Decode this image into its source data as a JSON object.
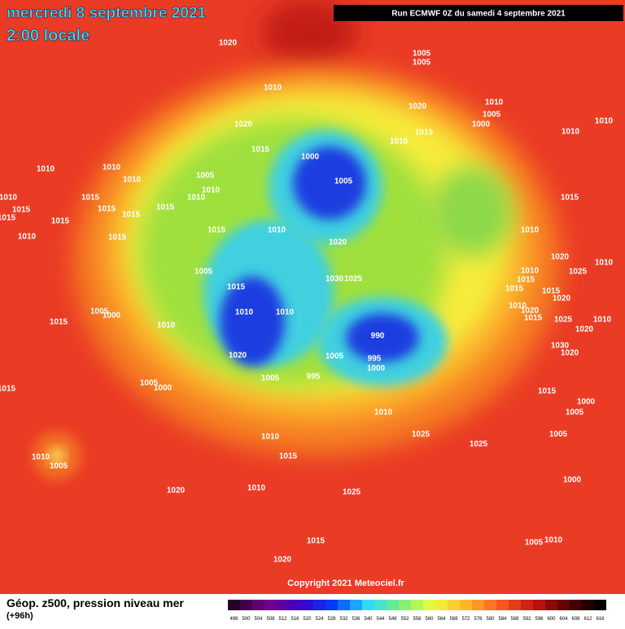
{
  "header": {
    "title": "mercredi 8 septembre 2021",
    "subtitle": "2:00 locale",
    "run": "Run ECMWF 0Z du samedi 4 septembre 2021"
  },
  "copyright": "Copyright 2021 Meteociel.fr",
  "footer": {
    "title": "Géop. z500, pression niveau mer",
    "subtitle": "(+96h)"
  },
  "isobar_labels": [
    "1020",
    "1005",
    "1005",
    "1010",
    "1020",
    "1010",
    "1005",
    "1000",
    "1010",
    "1020",
    "1015",
    "1010",
    "1010",
    "1015",
    "1000",
    "1010",
    "1010",
    "1010",
    "1005",
    "1010",
    "1005",
    "1010",
    "1010",
    "1015",
    "1015",
    "1015",
    "1015",
    "1015",
    "1015",
    "1015",
    "1015",
    "1015",
    "1010",
    "1010",
    "1010",
    "1015",
    "1020",
    "1020",
    "1025",
    "1010",
    "1005",
    "1010",
    "1030",
    "1025",
    "1015",
    "1015",
    "1015",
    "1015",
    "1020",
    "1005",
    "1000",
    "1010",
    "1010",
    "1010",
    "1020",
    "1015",
    "1025",
    "1015",
    "1010",
    "1010",
    "1020",
    "990",
    "1020",
    "1030",
    "1020",
    "1005",
    "995",
    "1000",
    "1005",
    "995",
    "1005",
    "1000",
    "1015",
    "1015",
    "1000",
    "1010",
    "1005",
    "1025",
    "1010",
    "1025",
    "1005",
    "1015",
    "1010",
    "1005",
    "1010",
    "1000",
    "1020",
    "1025",
    "1015",
    "1005",
    "1010",
    "1020"
  ],
  "scale": {
    "labels": [
      496,
      500,
      504,
      508,
      512,
      516,
      520,
      524,
      528,
      532,
      536,
      540,
      544,
      548,
      552,
      556,
      560,
      564,
      568,
      572,
      576,
      580,
      584,
      588,
      592,
      596,
      600,
      604,
      608,
      612,
      616
    ]
  }
}
